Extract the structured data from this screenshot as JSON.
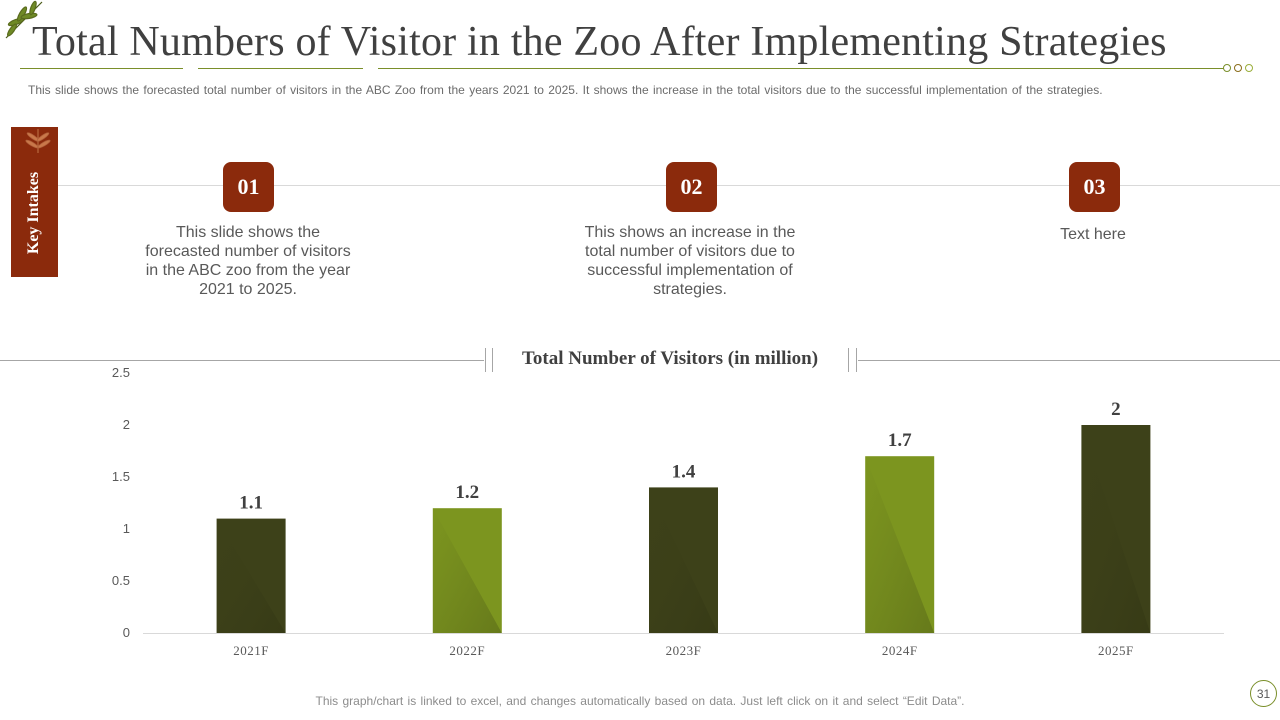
{
  "slide": {
    "title": "Total Numbers of Visitor in the Zoo After Implementing Strategies",
    "subtitle": "This slide shows the forecasted total number of visitors in the ABC Zoo from the years 2021 to 2025. It shows the increase in the total visitors due to the successful implementation of the strategies.",
    "footer": "This graph/chart is linked to excel, and changes automatically based on data. Just left click on it and select “Edit Data”.",
    "page_number": "31"
  },
  "key_intakes": {
    "label": "Key Intakes",
    "steps": [
      {
        "number": "01",
        "text": "This slide shows the forecasted number of visitors in the ABC zoo from the year 2021 to 2025."
      },
      {
        "number": "02",
        "text": "This shows an increase in the total number of visitors due to successful implementation of strategies."
      },
      {
        "number": "03",
        "text": "Text here"
      }
    ]
  },
  "colors": {
    "accent": "#8b2a0c",
    "dark_bar": "#3d4119",
    "light_bar": "#7c951f"
  },
  "chart_data": {
    "type": "bar",
    "title": "Total Number of Visitors (in million)",
    "categories": [
      "2021F",
      "2022F",
      "2023F",
      "2024F",
      "2025F"
    ],
    "values": [
      1.1,
      1.2,
      1.4,
      1.7,
      2
    ],
    "data_labels": [
      "1.1",
      "1.2",
      "1.4",
      "1.7",
      "2"
    ],
    "ylim": [
      0,
      2.5
    ],
    "yticks": [
      "0",
      "0.5",
      "1",
      "1.5",
      "2",
      "2.5"
    ],
    "ytick_values": [
      0,
      0.5,
      1,
      1.5,
      2,
      2.5
    ],
    "bar_colors": [
      "#3d4119",
      "#7c951f",
      "#3d4119",
      "#7c951f",
      "#3d4119"
    ],
    "xlabel": "",
    "ylabel": "",
    "grid": false,
    "legend": "none"
  }
}
